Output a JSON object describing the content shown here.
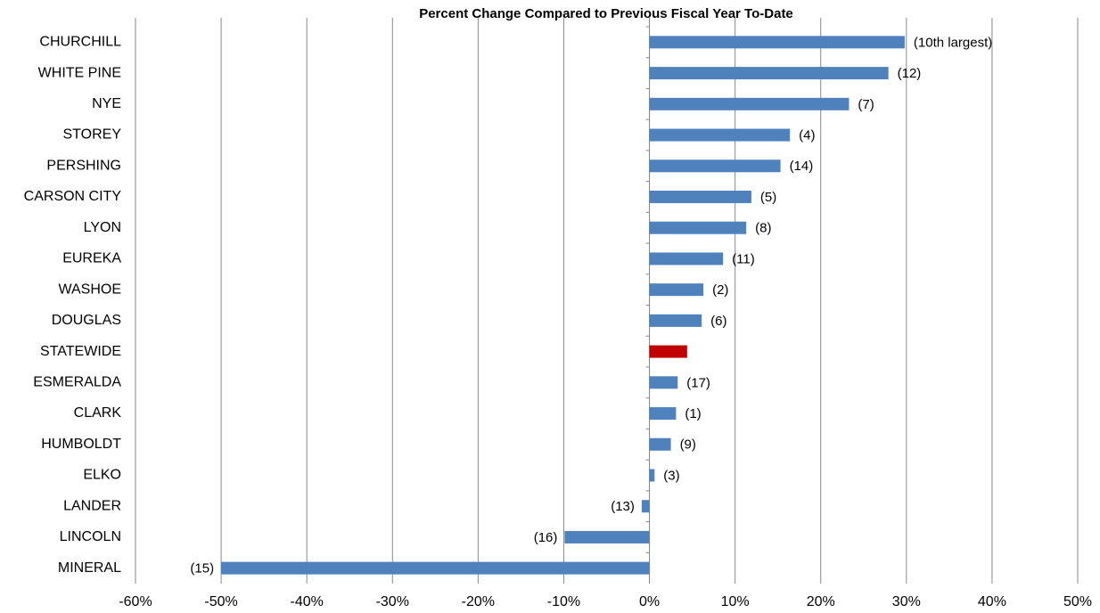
{
  "chart_data": {
    "type": "bar",
    "orientation": "horizontal",
    "title": "Percent Change Compared to Previous Fiscal Year To-Date",
    "categories": [
      "CHURCHILL",
      "WHITE PINE",
      "NYE",
      "STOREY",
      "PERSHING",
      "CARSON CITY",
      "LYON",
      "EUREKA",
      "WASHOE",
      "DOUGLAS",
      "STATEWIDE",
      "ESMERALDA",
      "CLARK",
      "HUMBOLDT",
      "ELKO",
      "LANDER",
      "LINCOLN",
      "MINERAL"
    ],
    "values": [
      29.8,
      27.9,
      23.3,
      16.4,
      15.3,
      11.9,
      11.3,
      8.6,
      6.3,
      6.1,
      4.4,
      3.3,
      3.1,
      2.5,
      0.6,
      -0.9,
      -9.9,
      -50.0
    ],
    "rank_labels": [
      "(10th largest)",
      "(12)",
      "(7)",
      "(4)",
      "(14)",
      "(5)",
      "(8)",
      "(11)",
      "(2)",
      "(6)",
      null,
      "(17)",
      "(1)",
      "(9)",
      "(3)",
      "(13)",
      "(16)",
      "(15)"
    ],
    "colors": [
      "#4f81bd",
      "#4f81bd",
      "#4f81bd",
      "#4f81bd",
      "#4f81bd",
      "#4f81bd",
      "#4f81bd",
      "#4f81bd",
      "#4f81bd",
      "#4f81bd",
      "#c00000",
      "#4f81bd",
      "#4f81bd",
      "#4f81bd",
      "#4f81bd",
      "#4f81bd",
      "#4f81bd",
      "#4f81bd"
    ],
    "xlim": [
      -60,
      50
    ],
    "xticks": [
      {
        "value": -60,
        "label": "-60%"
      },
      {
        "value": -50,
        "label": "-50%"
      },
      {
        "value": -40,
        "label": "-40%"
      },
      {
        "value": -30,
        "label": "-30%"
      },
      {
        "value": -20,
        "label": "-20%"
      },
      {
        "value": -10,
        "label": "-10%"
      },
      {
        "value": 0,
        "label": "0%"
      },
      {
        "value": 10,
        "label": "10%"
      },
      {
        "value": 20,
        "label": "20%"
      },
      {
        "value": 30,
        "label": "30%"
      },
      {
        "value": 40,
        "label": "40%"
      },
      {
        "value": 50,
        "label": "50%"
      }
    ],
    "grid": true
  }
}
